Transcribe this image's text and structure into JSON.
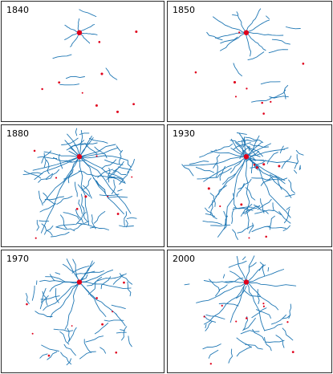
{
  "panels": [
    {
      "year": "1840",
      "stage": 0.06
    },
    {
      "year": "1850",
      "stage": 0.22
    },
    {
      "year": "1880",
      "stage": 1.0
    },
    {
      "year": "1930",
      "stage": 1.0
    },
    {
      "year": "1970",
      "stage": 0.55
    },
    {
      "year": "2000",
      "stage": 0.5
    }
  ],
  "colors": {
    "rail": "#1f77b4",
    "city": "#e0001b",
    "border": "#2a2a2a",
    "background": "#ffffff"
  }
}
